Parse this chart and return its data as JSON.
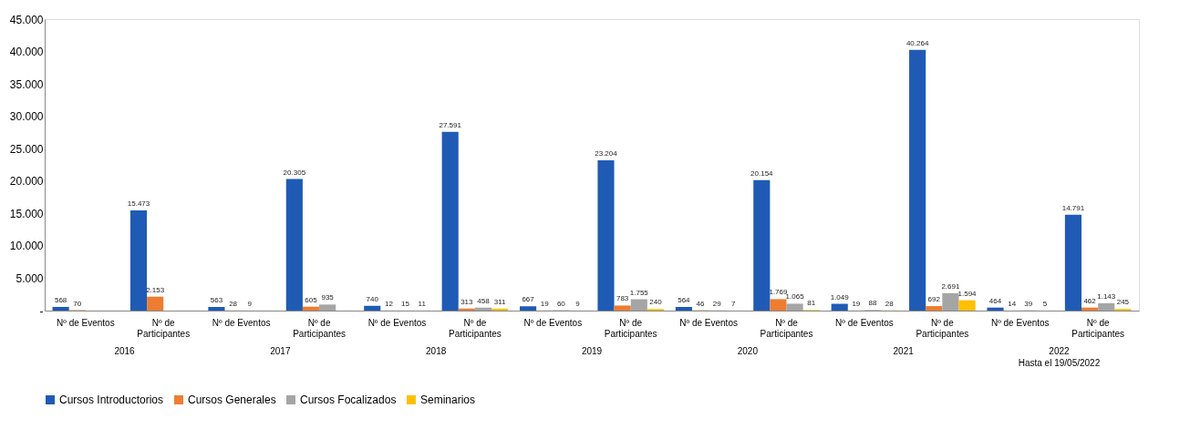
{
  "chart_data": {
    "type": "bar",
    "categories": [
      "Nº de Eventos",
      "Nº de Participantes",
      "Nº de Eventos",
      "Nº de Participantes",
      "Nº de Eventos",
      "Nº de Participantes",
      "Nº de Eventos",
      "Nº de Participantes",
      "Nº de Eventos",
      "Nº de Participantes",
      "Nº de Eventos",
      "Nº de Participantes",
      "Nº de Eventos",
      "Nº de Participantes"
    ],
    "series": [
      {
        "name": "Cursos Introductorios",
        "color": "#1f5bb5",
        "values": [
          568,
          15473,
          563,
          20305,
          740,
          27591,
          667,
          23204,
          564,
          20154,
          1049,
          40264,
          464,
          14791
        ],
        "value_labels": [
          "568",
          "15.473",
          "563",
          "20.305",
          "740",
          "27.591",
          "667",
          "23.204",
          "564",
          "20.154",
          "1.049",
          "40.264",
          "464",
          "14.791"
        ]
      },
      {
        "name": "Cursos Generales",
        "color": "#ed7d31",
        "values": [
          70,
          2153,
          28,
          605,
          12,
          313,
          19,
          783,
          46,
          1769,
          19,
          692,
          14,
          462
        ],
        "value_labels": [
          "70",
          "2.153",
          "28",
          "605",
          "12",
          "313",
          "19",
          "783",
          "46",
          "1.769",
          "19",
          "692",
          "14",
          "462"
        ]
      },
      {
        "name": "Cursos Focalizados",
        "color": "#a5a5a5",
        "values": [
          null,
          null,
          9,
          935,
          15,
          458,
          60,
          1755,
          29,
          1065,
          88,
          2691,
          39,
          1143
        ],
        "value_labels": [
          null,
          null,
          "9",
          "935",
          "15",
          "458",
          "60",
          "1.755",
          "29",
          "1.065",
          "88",
          "2.691",
          "39",
          "1.143"
        ]
      },
      {
        "name": "Seminarios",
        "color": "#ffc000",
        "values": [
          null,
          null,
          null,
          null,
          11,
          311,
          9,
          240,
          7,
          81,
          28,
          1594,
          5,
          245
        ],
        "value_labels": [
          null,
          null,
          null,
          null,
          "11",
          "311",
          "9",
          "240",
          "7",
          "81",
          "28",
          "1.594",
          "5",
          "245"
        ]
      }
    ],
    "ylim": [
      0,
      45000
    ],
    "yticks": [
      {
        "value": 0,
        "label": "-"
      },
      {
        "value": 5000,
        "label": "5.000"
      },
      {
        "value": 10000,
        "label": "10.000"
      },
      {
        "value": 15000,
        "label": "15.000"
      },
      {
        "value": 20000,
        "label": "20.000"
      },
      {
        "value": 25000,
        "label": "25.000"
      },
      {
        "value": 30000,
        "label": "30.000"
      },
      {
        "value": 35000,
        "label": "35.000"
      },
      {
        "value": 40000,
        "label": "40.000"
      },
      {
        "value": 45000,
        "label": "45.000"
      }
    ],
    "annotations": [
      "2016",
      "2017",
      "2018",
      "2019",
      "2020",
      "2021",
      "2022\nHasta el 19/05/2022"
    ],
    "grid": false,
    "legend": "bottom"
  }
}
